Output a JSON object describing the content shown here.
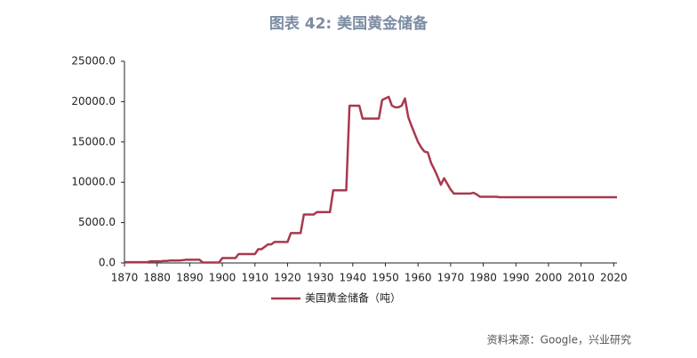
{
  "chart_data": {
    "type": "line",
    "title": "图表 42: 美国黄金储备",
    "source": "资料来源：Google，兴业研究",
    "x": [
      1870,
      1871,
      1872,
      1873,
      1874,
      1875,
      1876,
      1877,
      1878,
      1879,
      1880,
      1881,
      1882,
      1883,
      1884,
      1885,
      1886,
      1887,
      1888,
      1889,
      1890,
      1891,
      1892,
      1893,
      1894,
      1895,
      1896,
      1897,
      1898,
      1899,
      1900,
      1901,
      1902,
      1903,
      1904,
      1905,
      1906,
      1907,
      1908,
      1909,
      1910,
      1911,
      1912,
      1913,
      1914,
      1915,
      1916,
      1917,
      1918,
      1919,
      1920,
      1921,
      1922,
      1923,
      1924,
      1925,
      1926,
      1927,
      1928,
      1929,
      1930,
      1931,
      1932,
      1933,
      1934,
      1935,
      1936,
      1937,
      1938,
      1939,
      1940,
      1941,
      1942,
      1943,
      1944,
      1945,
      1946,
      1947,
      1948,
      1949,
      1950,
      1951,
      1952,
      1953,
      1954,
      1955,
      1956,
      1957,
      1958,
      1959,
      1960,
      1961,
      1962,
      1963,
      1964,
      1965,
      1966,
      1967,
      1968,
      1969,
      1970,
      1971,
      1972,
      1973,
      1974,
      1975,
      1976,
      1977,
      1978,
      1979,
      1980,
      1981,
      1982,
      1983,
      1984,
      1985,
      1986,
      1987,
      1988,
      1989,
      1990,
      1991,
      1992,
      1993,
      1994,
      1995,
      1996,
      1997,
      1998,
      1999,
      2000,
      2001,
      2002,
      2003,
      2004,
      2005,
      2006,
      2007,
      2008,
      2009,
      2010,
      2011,
      2012,
      2013,
      2014,
      2015,
      2016,
      2017,
      2018,
      2019,
      2020,
      2021
    ],
    "series": [
      {
        "name": "美国黄金储备（吨）",
        "color": "#a8394c",
        "values": [
          100,
          100,
          100,
          100,
          100,
          100,
          100,
          100,
          200,
          200,
          200,
          200,
          250,
          250,
          300,
          300,
          300,
          300,
          350,
          400,
          400,
          400,
          400,
          400,
          50,
          50,
          50,
          50,
          50,
          50,
          600,
          600,
          600,
          600,
          600,
          1100,
          1100,
          1100,
          1100,
          1100,
          1100,
          1700,
          1700,
          2000,
          2300,
          2300,
          2600,
          2600,
          2600,
          2600,
          2600,
          3700,
          3700,
          3700,
          3700,
          6000,
          6000,
          6000,
          6000,
          6300,
          6300,
          6300,
          6300,
          6300,
          9000,
          9000,
          9000,
          9000,
          9000,
          19500,
          19500,
          19500,
          19500,
          17900,
          17900,
          17900,
          17900,
          17900,
          17900,
          20200,
          20400,
          20600,
          19500,
          19300,
          19300,
          19500,
          20400,
          18100,
          17000,
          16000,
          15000,
          14300,
          13800,
          13700,
          12400,
          11600,
          10700,
          9700,
          10500,
          9800,
          9100,
          8600,
          8600,
          8600,
          8600,
          8600,
          8600,
          8700,
          8500,
          8200,
          8200,
          8200,
          8200,
          8200,
          8200,
          8150,
          8150,
          8150,
          8150,
          8150,
          8150,
          8150,
          8150,
          8150,
          8150,
          8150,
          8150,
          8150,
          8150,
          8150,
          8150,
          8150,
          8150,
          8150,
          8150,
          8150,
          8150,
          8150,
          8150,
          8150,
          8150,
          8150,
          8150,
          8150,
          8150,
          8150,
          8150,
          8150,
          8150,
          8150,
          8150,
          8150
        ]
      }
    ],
    "xlim": [
      1870,
      2021
    ],
    "xticks": [
      1870,
      1880,
      1890,
      1900,
      1910,
      1920,
      1930,
      1940,
      1950,
      1960,
      1970,
      1980,
      1990,
      2000,
      2010,
      2020
    ],
    "ylim": [
      0,
      25000
    ],
    "yticks": [
      {
        "value": 0,
        "label": "0.0"
      },
      {
        "value": 5000,
        "label": "5000.0"
      },
      {
        "value": 10000,
        "label": "10000.0"
      },
      {
        "value": 15000,
        "label": "15000.0"
      },
      {
        "value": 20000,
        "label": "20000.0"
      },
      {
        "value": 25000,
        "label": "25000.0"
      }
    ],
    "grid": false
  }
}
